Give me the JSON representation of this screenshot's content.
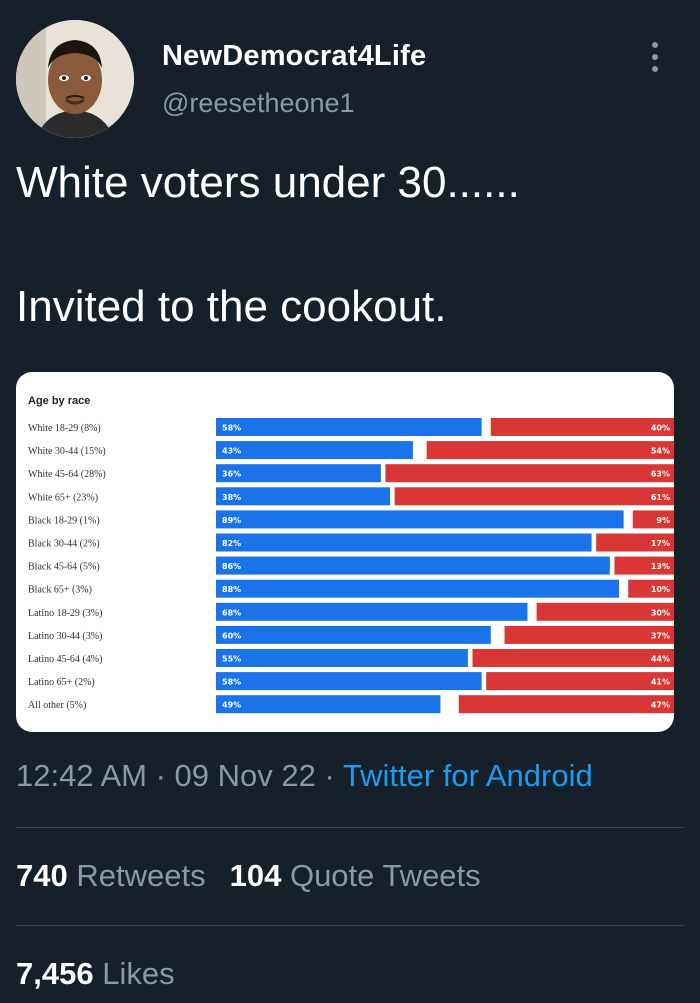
{
  "tweet": {
    "display_name": "NewDemocrat4Life",
    "handle": "@reesetheone1",
    "text": "White voters under 30......\n\nInvited to the cookout.",
    "icons": {
      "more": "more-options-icon",
      "avatar": "profile-avatar"
    }
  },
  "meta": {
    "time": "12:42 AM",
    "separator1": " · ",
    "date": "09 Nov 22",
    "separator2": " · ",
    "source": "Twitter for Android"
  },
  "stats": {
    "retweets_count": "740",
    "retweets_label": "Retweets",
    "quotes_count": "104",
    "quotes_label": "Quote Tweets",
    "likes_count": "7,456",
    "likes_label": "Likes"
  },
  "colors": {
    "background": "#15202b",
    "dem_blue": "#1a73e8",
    "rep_red": "#d93636",
    "link": "#1d9bf0",
    "muted": "#8b98a5"
  },
  "chart_data": {
    "type": "bar",
    "title": "Age by race",
    "categories": [
      "White 18-29 (8%)",
      "White 30-44 (15%)",
      "White 45-64 (28%)",
      "White 65+ (23%)",
      "Black 18-29 (1%)",
      "Black 30-44 (2%)",
      "Black 45-64 (5%)",
      "Black 65+ (3%)",
      "Latino 18-29 (3%)",
      "Latino 30-44 (3%)",
      "Latino 45-64 (4%)",
      "Latino 65+ (2%)",
      "All other (5%)"
    ],
    "series": [
      {
        "values": [
          58,
          43,
          36,
          38,
          89,
          82,
          86,
          88,
          68,
          60,
          55,
          58,
          49
        ],
        "labels": [
          "58%",
          "43%",
          "36%",
          "38%",
          "89%",
          "82%",
          "86%",
          "88%",
          "68%",
          "60%",
          "55%",
          "58%",
          "49%"
        ],
        "color": "#1a73e8"
      },
      {
        "values": [
          40,
          54,
          63,
          61,
          9,
          17,
          13,
          10,
          30,
          37,
          44,
          41,
          47
        ],
        "labels": [
          "40%",
          "54%",
          "63%",
          "61%",
          "9%",
          "17%",
          "13%",
          "10%",
          "30%",
          "37%",
          "44%",
          "41%",
          "47%"
        ],
        "color": "#d93636"
      }
    ],
    "stacked": "diverging",
    "xlim": [
      0,
      100
    ]
  }
}
